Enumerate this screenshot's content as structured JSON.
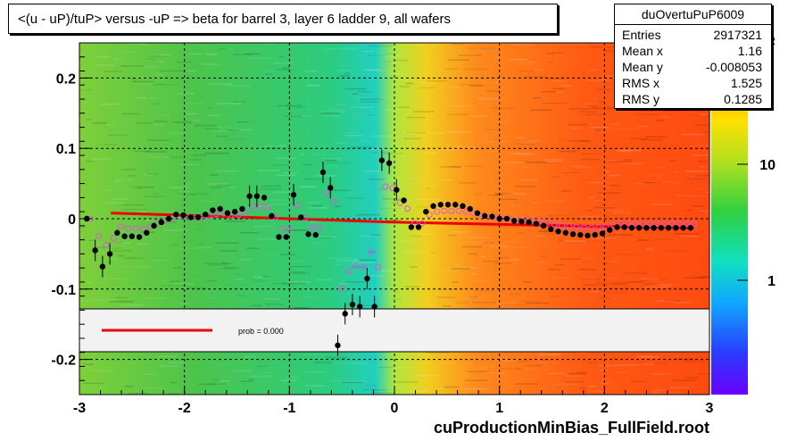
{
  "title": "<(u - uP)/tuP> versus  -uP => beta for barrel 3, layer 6 ladder 9, all wafers",
  "footer": "cuProductionMinBias_FullField.root",
  "stats": {
    "name": "duOvertuPuP6009",
    "rows": [
      {
        "label": "Entries",
        "value": "2917321"
      },
      {
        "label": "Mean x",
        "value": "1.16"
      },
      {
        "label": "Mean y",
        "value": "-0.008053"
      },
      {
        "label": "RMS x",
        "value": "1.525"
      },
      {
        "label": "RMS y",
        "value": "0.1285"
      }
    ]
  },
  "legend": {
    "text": "prob = 0.000"
  },
  "colors": {
    "fit_line": "#ee0000",
    "profile_marker": "#000000",
    "open_marker": "#dd55dd"
  },
  "chart_data": {
    "type": "heatmap",
    "xlim": [
      -3,
      3
    ],
    "ylim": [
      -0.25,
      0.25
    ],
    "x_ticks": [
      "-3",
      "-2",
      "-1",
      "0",
      "1",
      "2",
      "3"
    ],
    "y_ticks": [
      "0.2",
      "0.1",
      "0",
      "-0.1",
      "-0.2"
    ],
    "z_ticks": [
      "10",
      "1"
    ],
    "z_scale": "log",
    "grid": true,
    "fit_line": {
      "x": [
        -2.7,
        -2.0,
        -1.0,
        0.0,
        1.0,
        2.0,
        2.85
      ],
      "y": [
        0.008,
        0.005,
        0.0,
        -0.005,
        -0.008,
        -0.011,
        -0.013
      ]
    },
    "profile": {
      "x": [
        -2.93,
        -2.85,
        -2.78,
        -2.71,
        -2.64,
        -2.57,
        -2.5,
        -2.43,
        -2.36,
        -2.29,
        -2.22,
        -2.15,
        -2.08,
        -2.01,
        -1.94,
        -1.87,
        -1.8,
        -1.73,
        -1.66,
        -1.59,
        -1.52,
        -1.45,
        -1.38,
        -1.31,
        -1.24,
        -1.17,
        -1.1,
        -1.03,
        -0.96,
        -0.89,
        -0.82,
        -0.75,
        -0.68,
        -0.61,
        -0.54,
        -0.47,
        -0.4,
        -0.33,
        -0.26,
        -0.19,
        -0.12,
        -0.05,
        0.02,
        0.09,
        0.16,
        0.23,
        0.3,
        0.37,
        0.44,
        0.51,
        0.58,
        0.65,
        0.72,
        0.79,
        0.86,
        0.93,
        1.0,
        1.07,
        1.14,
        1.21,
        1.28,
        1.35,
        1.42,
        1.49,
        1.56,
        1.63,
        1.7,
        1.77,
        1.84,
        1.91,
        1.98,
        2.05,
        2.12,
        2.19,
        2.26,
        2.33,
        2.4,
        2.47,
        2.54,
        2.61,
        2.68,
        2.75,
        2.82
      ],
      "y": [
        0.0,
        -0.045,
        -0.068,
        -0.05,
        -0.02,
        -0.025,
        -0.025,
        -0.026,
        -0.02,
        -0.01,
        -0.005,
        0.0,
        0.006,
        0.005,
        0.002,
        0.002,
        0.006,
        0.012,
        0.014,
        0.008,
        0.01,
        0.014,
        0.032,
        0.032,
        0.03,
        0.004,
        -0.026,
        -0.026,
        0.034,
        0.002,
        -0.022,
        -0.023,
        0.066,
        0.044,
        -0.18,
        -0.135,
        -0.122,
        -0.125,
        -0.085,
        -0.125,
        0.083,
        0.079,
        0.041,
        0.026,
        -0.012,
        -0.012,
        0.01,
        0.018,
        0.02,
        0.02,
        0.02,
        0.018,
        0.014,
        0.008,
        0.004,
        0.003,
        0.0,
        0.0,
        -0.003,
        -0.004,
        -0.005,
        -0.007,
        -0.01,
        -0.015,
        -0.018,
        -0.02,
        -0.022,
        -0.023,
        -0.024,
        -0.023,
        -0.021,
        -0.016,
        -0.012,
        -0.012,
        -0.013,
        -0.013,
        -0.013,
        -0.013,
        -0.013,
        -0.013,
        -0.013,
        -0.013,
        -0.013
      ]
    }
  }
}
